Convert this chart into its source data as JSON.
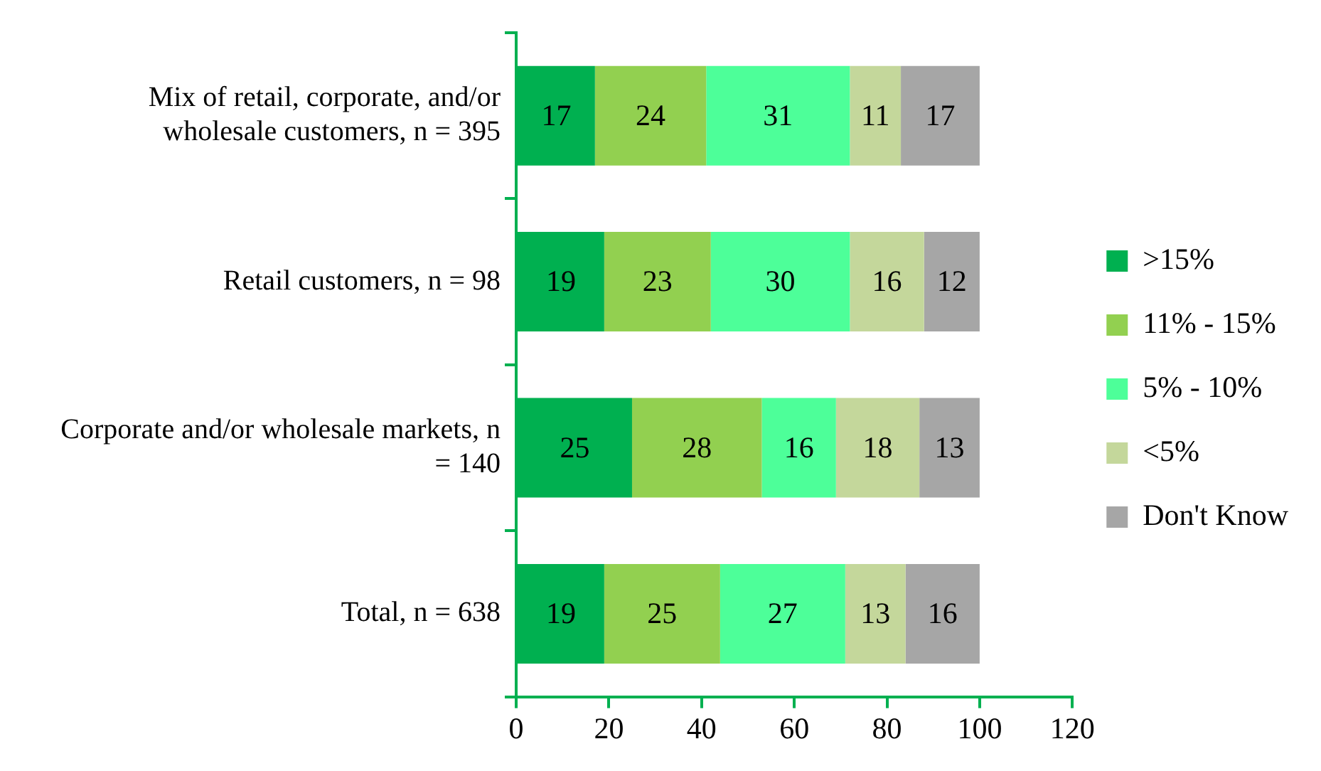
{
  "chart_data": {
    "type": "bar",
    "orientation": "horizontal",
    "stacked": true,
    "data_labels": true,
    "grid": false,
    "legend": "right",
    "categories": [
      "Mix of retail, corporate, and/or wholesale customers, n = 395",
      "Retail customers, n = 98",
      "Corporate and/or wholesale markets, n = 140",
      "Total, n = 638"
    ],
    "xlim": [
      0,
      120
    ],
    "xticks": [
      0,
      20,
      40,
      60,
      80,
      100,
      120
    ],
    "series": [
      {
        "name": ">15%",
        "color": "#00b050",
        "values": [
          17,
          19,
          25,
          19
        ]
      },
      {
        "name": "11% - 15%",
        "color": "#92d050",
        "values": [
          24,
          23,
          28,
          25
        ]
      },
      {
        "name": "5% - 10%",
        "color": "#4dff99",
        "values": [
          31,
          30,
          16,
          27
        ]
      },
      {
        "name": "<5%",
        "color": "#c4d79b",
        "values": [
          11,
          16,
          18,
          13
        ]
      },
      {
        "name": "Don't Know",
        "color": "#a6a6a6",
        "values": [
          17,
          12,
          13,
          16
        ]
      }
    ]
  }
}
